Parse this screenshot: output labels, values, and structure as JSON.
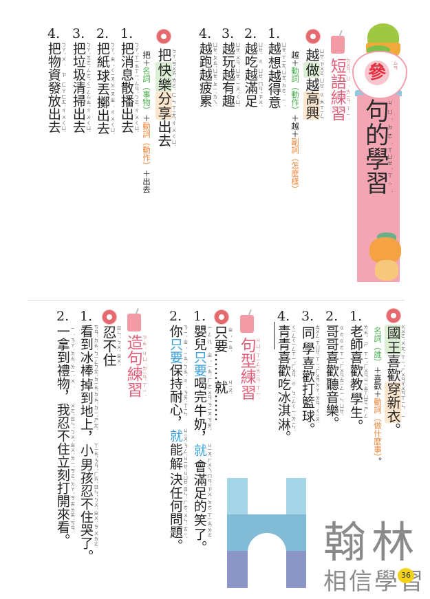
{
  "colors": {
    "banner": "#f4a5b3",
    "heading": "#e0607a",
    "green": "#4cb050",
    "orange": "#f0863a",
    "blue": "#3da2dc",
    "logo_gray": "#8a8a8a"
  },
  "header": {
    "badge": "參",
    "badge_zy": "ㄙㄢ",
    "title": [
      {
        "t": "句的學習",
        "zy": "ㄐㄩˋ ㄉㄜ˙ ㄒㄩㄝˊ ㄒㄧˊ"
      }
    ]
  },
  "phrase_practice": {
    "heading": [
      {
        "t": "短語練習",
        "zy": "ㄉㄨㄢˇ ㄩˇ ㄌㄧㄢˋ ㄒㄧˊ"
      }
    ],
    "pattern1": {
      "example": [
        {
          "t": "越",
          "zy": "ㄩㄝˋ"
        },
        {
          "t": "做",
          "zy": "ㄗㄨㄛˋ",
          "hl": "green"
        },
        {
          "t": "越",
          "zy": "ㄩㄝˋ"
        },
        {
          "t": "高興",
          "zy": "ㄍㄠ ㄒㄧㄥˋ",
          "hl": "orange"
        }
      ],
      "formula": [
        {
          "t": "越＋"
        },
        {
          "t": "動詞",
          "c": "green"
        },
        {
          "t": "（動作）",
          "c": "green"
        },
        {
          "t": "＋越＋"
        },
        {
          "t": "副詞",
          "c": "orange"
        },
        {
          "t": "（怎麼樣）",
          "c": "orange"
        }
      ],
      "items": [
        {
          "num": "1.",
          "line": [
            {
              "t": "越想越得意",
              "zy": "ㄩㄝˋ ㄒㄧㄤˇ ㄩㄝˋ ㄉㄜˊ ㄧˋ"
            }
          ]
        },
        {
          "num": "2.",
          "line": [
            {
              "t": "越吃越滿足",
              "zy": "ㄩㄝˋ ㄔ ㄩㄝˋ ㄇㄢˇ ㄗㄨˊ"
            }
          ]
        },
        {
          "num": "3.",
          "line": [
            {
              "t": "越玩越有趣",
              "zy": "ㄩㄝˋ ㄨㄢˊ ㄩㄝˋ ㄧㄡˇ ㄑㄩˋ"
            }
          ]
        },
        {
          "num": "4.",
          "line": [
            {
              "t": "越跑越疲累",
              "zy": "ㄩㄝˋ ㄆㄠˇ ㄩㄝˋ ㄆㄧˊ ㄌㄟˋ"
            }
          ]
        }
      ]
    },
    "pattern2": {
      "example": [
        {
          "t": "把",
          "zy": "ㄅㄚˇ"
        },
        {
          "t": "快樂",
          "zy": "ㄎㄨㄞˋ ㄌㄜˋ",
          "hl": "green"
        },
        {
          "t": "分享",
          "zy": "ㄈㄣ ㄒㄧㄤˇ",
          "hl": "orange"
        },
        {
          "t": "出去",
          "zy": "ㄔㄨ ㄑㄩˋ"
        }
      ],
      "formula": [
        {
          "t": "把＋"
        },
        {
          "t": "名詞",
          "c": "green"
        },
        {
          "t": "（事物）",
          "c": "green"
        },
        {
          "t": "＋"
        },
        {
          "t": "動詞",
          "c": "orange"
        },
        {
          "t": "（動作）",
          "c": "orange"
        },
        {
          "t": "＋出去"
        }
      ],
      "items": [
        {
          "num": "1.",
          "line": [
            {
              "t": "把消息散播出去",
              "zy": "ㄅㄚˇ ㄒㄧㄠ ㄒㄧˊ ㄙㄢˋ ㄅㄛˋ ㄔㄨ ㄑㄩˋ"
            }
          ]
        },
        {
          "num": "2.",
          "line": [
            {
              "t": "把紙球丟擲出去",
              "zy": "ㄅㄚˇ ㄓˇ ㄑㄧㄡˊ ㄉㄧㄡ ㄓˊ ㄔㄨ ㄑㄩˋ"
            }
          ]
        },
        {
          "num": "3.",
          "line": [
            {
              "t": "把垃圾清掃出去",
              "zy": "ㄅㄚˇ ㄌㄜˋ ㄙㄜˋ ㄑㄧㄥ ㄙㄠˇ ㄔㄨ ㄑㄩˋ"
            }
          ]
        },
        {
          "num": "4.",
          "line": [
            {
              "t": "把物資發放出去",
              "zy": "ㄅㄚˇ ㄨˋ ㄗ ㄈㄚ ㄈㄤˋ ㄔㄨ ㄑㄩˋ"
            }
          ]
        }
      ]
    }
  },
  "sentence_pattern": {
    "pattern3": {
      "example": [
        {
          "t": "國王",
          "zy": "ㄍㄨㄛˊ ㄨㄤˊ",
          "hl": "green"
        },
        {
          "t": "喜歡",
          "zy": "ㄒㄧˇ ㄏㄨㄢ"
        },
        {
          "t": "穿新衣",
          "zy": "ㄔㄨㄢ ㄒㄧㄣ ㄧ",
          "hl": "orange"
        },
        {
          "t": "。",
          "zy": "_"
        }
      ],
      "formula": [
        {
          "t": "名詞",
          "c": "green"
        },
        {
          "t": "（誰）",
          "c": "green"
        },
        {
          "t": "＋喜歡＋"
        },
        {
          "t": "動詞",
          "c": "orange"
        },
        {
          "t": "（做什麼事）",
          "c": "orange"
        },
        {
          "t": "。"
        }
      ],
      "items": [
        {
          "num": "1.",
          "line": [
            {
              "t": "老師喜歡教學生。",
              "zy": "ㄌㄠˇ ㄕ ㄒㄧˇ ㄏㄨㄢ ㄐㄧㄠ ㄒㄩㄝˊ ㄕㄥ _"
            }
          ]
        },
        {
          "num": "2.",
          "line": [
            {
              "t": "哥哥喜歡聽音樂。",
              "zy": "ㄍㄜ ㄍㄜ ㄒㄧˇ ㄏㄨㄢ ㄊㄧㄥ ㄧㄣ ㄩㄝˋ _"
            }
          ]
        },
        {
          "num": "3.",
          "line": [
            {
              "t": "同學喜歡打籃球。",
              "zy": "ㄊㄨㄥˊ ㄒㄩㄝˊ ㄒㄧˇ ㄏㄨㄢ ㄉㄚˇ ㄌㄢˊ ㄑㄧㄡˊ _"
            }
          ]
        },
        {
          "num": "4.",
          "line": [
            {
              "t": "青青喜歡吃冰淇淋。",
              "zy": "ㄑㄧㄥ ㄑㄧㄥ ㄒㄧˇ ㄏㄨㄢ ㄔ ㄅㄧㄥ ㄑㄧˊ ㄌㄧㄣˊ _"
            }
          ]
        }
      ]
    },
    "heading": [
      {
        "t": "句型練習",
        "zy": "ㄐㄩˋ ㄒㄧㄥˊ ㄌㄧㄢˋ ㄒㄧˊ"
      }
    ],
    "pattern4": {
      "example": [
        {
          "t": "只要",
          "zy": "ㄓˇ ㄧㄠˋ"
        },
        {
          "t": "……",
          "zy": "_ _"
        },
        {
          "t": "就",
          "zy": "ㄐㄧㄡˋ"
        },
        {
          "t": "……",
          "zy": "_ _"
        }
      ],
      "items": [
        {
          "num": "1.",
          "line": [
            {
              "t": "嬰兒",
              "zy": "ㄧㄥ ㄦˊ"
            },
            {
              "t": "只要",
              "zy": "ㄓˇ ㄧㄠˋ",
              "c": "blue"
            },
            {
              "t": "喝完牛奶，",
              "zy": "ㄏㄜ ㄨㄢˊ ㄋㄧㄡˊ ㄋㄞˇ _"
            },
            {
              "t": "就",
              "zy": "ㄐㄧㄡˋ",
              "c": "blue"
            },
            {
              "t": "會滿足的笑了。",
              "zy": "ㄏㄨㄟˋ ㄇㄢˇ ㄗㄨˊ ㄉㄜ˙ ㄒㄧㄠˋ ㄌㄜ˙ _"
            }
          ]
        },
        {
          "num": "2.",
          "line": [
            {
              "t": "你",
              "zy": "ㄋㄧˇ"
            },
            {
              "t": "只要",
              "zy": "ㄓˇ ㄧㄠˋ",
              "c": "blue"
            },
            {
              "t": "保持耐心，",
              "zy": "ㄅㄠˇ ㄔˊ ㄋㄞˋ ㄒㄧㄣ _"
            },
            {
              "t": "就",
              "zy": "ㄐㄧㄡˋ",
              "c": "blue"
            },
            {
              "t": "能解決任何問題。",
              "zy": "ㄋㄥˊ ㄐㄧㄝˇ ㄐㄩㄝˊ ㄖㄣˋ ㄏㄜˊ ㄨㄣˋ ㄊㄧˊ _"
            }
          ]
        }
      ]
    }
  },
  "sentence_making": {
    "heading": [
      {
        "t": "造句練習",
        "zy": "ㄗㄠˋ ㄐㄩˋ ㄌㄧㄢˋ ㄒㄧˊ"
      }
    ],
    "pattern5": {
      "example": [
        {
          "t": "忍不住",
          "zy": "ㄖㄣˇ ㄅㄨˋ ㄓㄨˋ"
        }
      ],
      "items": [
        {
          "num": "1.",
          "line": [
            {
              "t": "看到冰棒掉到地上，小男孩忍不住哭了。",
              "zy": "ㄎㄢˋ ㄉㄠˋ ㄅㄧㄥ ㄅㄤˋ ㄉㄧㄠˋ ㄉㄠˋ ㄉㄧˋ ㄕㄤˋ _ ㄒㄧㄠˇ ㄋㄢˊ ㄏㄞˊ ㄖㄣˇ ㄅㄨˋ ㄓㄨˋ ㄎㄨ ㄌㄜ˙ _"
            }
          ]
        },
        {
          "num": "2.",
          "line": [
            {
              "t": "一拿到禮物，我忍不住立刻打開來看。",
              "zy": "ㄧˋ ㄋㄚˊ ㄉㄠˋ ㄌㄧˇ ㄨˋ _ ㄨㄛˇ ㄖㄣˇ ㄅㄨˋ ㄓㄨˋ ㄌㄧˋ ㄎㄜˋ ㄉㄚˇ ㄎㄞ ㄌㄞˊ ㄎㄢˋ _"
            }
          ]
        }
      ]
    }
  },
  "logo": {
    "brand": "翰林",
    "slogan": "相信學習",
    "page_number": "36"
  }
}
